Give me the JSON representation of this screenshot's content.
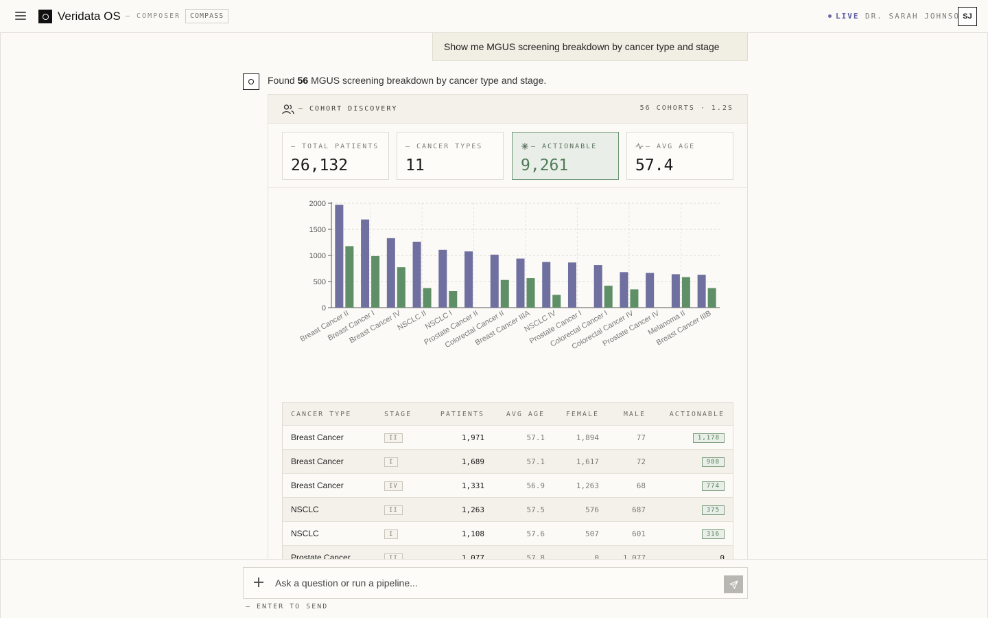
{
  "header": {
    "app_name": "Veridata OS",
    "nav_composer": "— COMPOSER",
    "nav_compass": "COMPASS",
    "live_label": "LIVE",
    "user_name": "DR. SARAH JOHNSON",
    "avatar_initials": "SJ"
  },
  "conversation": {
    "user_message": "Show me MGUS screening breakdown by cancer type and stage",
    "reply_prefix": "Found",
    "reply_count": "56",
    "reply_suffix": "MGUS screening breakdown by cancer type and stage."
  },
  "card": {
    "title": "— COHORT DISCOVERY",
    "meta": "56 COHORTS · 1.2S",
    "stats": [
      {
        "label": "— TOTAL PATIENTS",
        "value": "26,132"
      },
      {
        "label": "— CANCER TYPES",
        "value": "11"
      },
      {
        "label": "— ACTIONABLE",
        "value": "9,261"
      },
      {
        "label": "— AVG AGE",
        "value": "57.4"
      }
    ]
  },
  "chart_data": {
    "type": "bar",
    "categories": [
      "Breast Cancer II",
      "Breast Cancer I",
      "Breast Cancer IV",
      "NSCLC II",
      "NSCLC I",
      "Prostate Cancer II",
      "Colorectal Cancer II",
      "Breast Cancer IIIA",
      "NSCLC IV",
      "Prostate Cancer I",
      "Colorectal Cancer I",
      "Colorectal Cancer IV",
      "Prostate Cancer IV",
      "Melanoma II",
      "Breast Cancer IIIB"
    ],
    "series": [
      {
        "values": [
          1971,
          1689,
          1331,
          1263,
          1108,
          1077,
          1015,
          940,
          875,
          865,
          815,
          680,
          665,
          640,
          630
        ],
        "color": "#6f6fa0"
      },
      {
        "values": [
          1178,
          988,
          774,
          375,
          316,
          0,
          530,
          565,
          245,
          0,
          420,
          350,
          0,
          585,
          375
        ],
        "color": "#5f8f66"
      }
    ],
    "yticks": [
      0,
      500,
      1000,
      1500,
      2000
    ],
    "ylim": [
      0,
      2000
    ],
    "grid": true,
    "xlabel": "",
    "ylabel": ""
  },
  "table": {
    "headers": [
      "CANCER TYPE",
      "STAGE",
      "PATIENTS",
      "AVG AGE",
      "FEMALE",
      "MALE",
      "ACTIONABLE"
    ],
    "rows": [
      {
        "type": "Breast Cancer",
        "stage": "II",
        "patients": "1,971",
        "avg_age": "57.1",
        "female": "1,894",
        "male": "77",
        "actionable": "1,178"
      },
      {
        "type": "Breast Cancer",
        "stage": "I",
        "patients": "1,689",
        "avg_age": "57.1",
        "female": "1,617",
        "male": "72",
        "actionable": "988"
      },
      {
        "type": "Breast Cancer",
        "stage": "IV",
        "patients": "1,331",
        "avg_age": "56.9",
        "female": "1,263",
        "male": "68",
        "actionable": "774"
      },
      {
        "type": "NSCLC",
        "stage": "II",
        "patients": "1,263",
        "avg_age": "57.5",
        "female": "576",
        "male": "687",
        "actionable": "375"
      },
      {
        "type": "NSCLC",
        "stage": "I",
        "patients": "1,108",
        "avg_age": "57.6",
        "female": "507",
        "male": "601",
        "actionable": "316"
      },
      {
        "type": "Prostate Cancer",
        "stage": "II",
        "patients": "1,077",
        "avg_age": "57.8",
        "female": "0",
        "male": "1,077",
        "actionable": "0"
      }
    ]
  },
  "composer": {
    "placeholder": "Ask a question or run a pipeline...",
    "hint": "— ENTER TO SEND"
  },
  "colors": {
    "accent_purple": "#6f6fa0",
    "accent_green": "#5f8f66"
  }
}
